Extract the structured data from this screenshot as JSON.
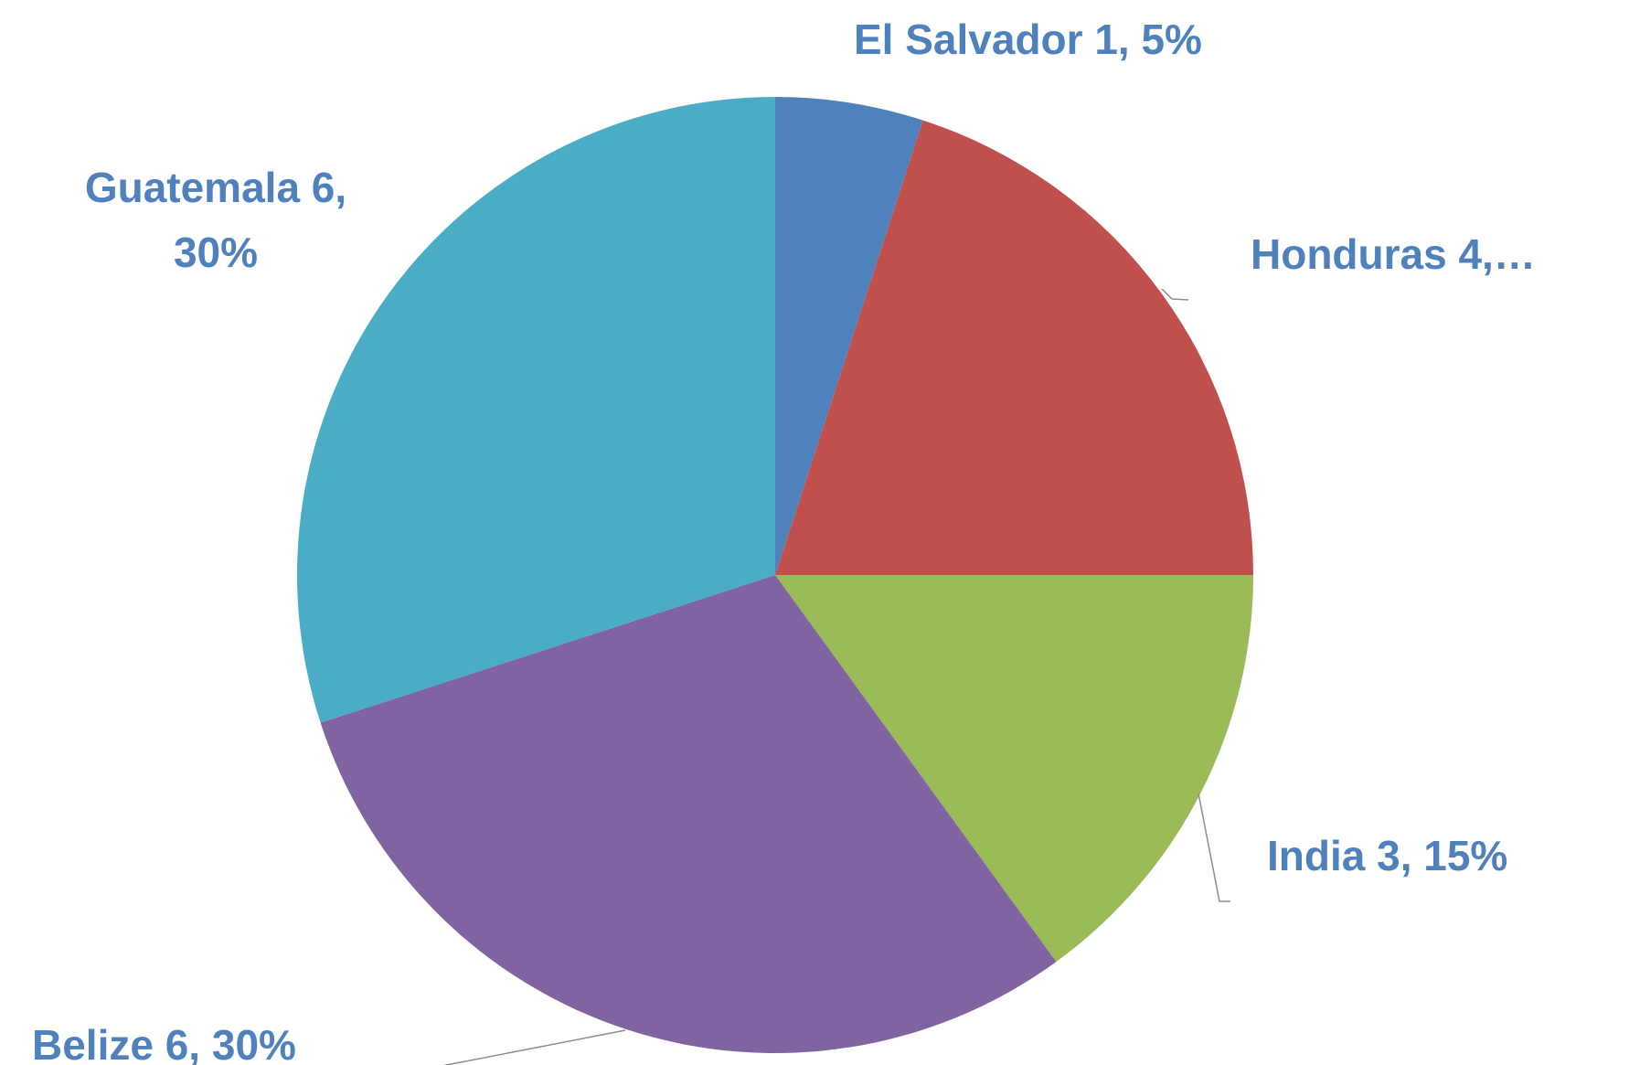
{
  "chart_data": {
    "type": "pie",
    "labels": [
      "El Salvador 1, 5%",
      "Honduras 4,…",
      "India  3, 15%",
      "Belize  6, 30%",
      "Guatemala 6, 30%"
    ],
    "values": [
      1,
      4,
      3,
      6,
      6
    ],
    "colors": [
      "#4f81bd",
      "#c0504d",
      "#9bbb59",
      "#8064a2",
      "#4bacc6"
    ]
  }
}
